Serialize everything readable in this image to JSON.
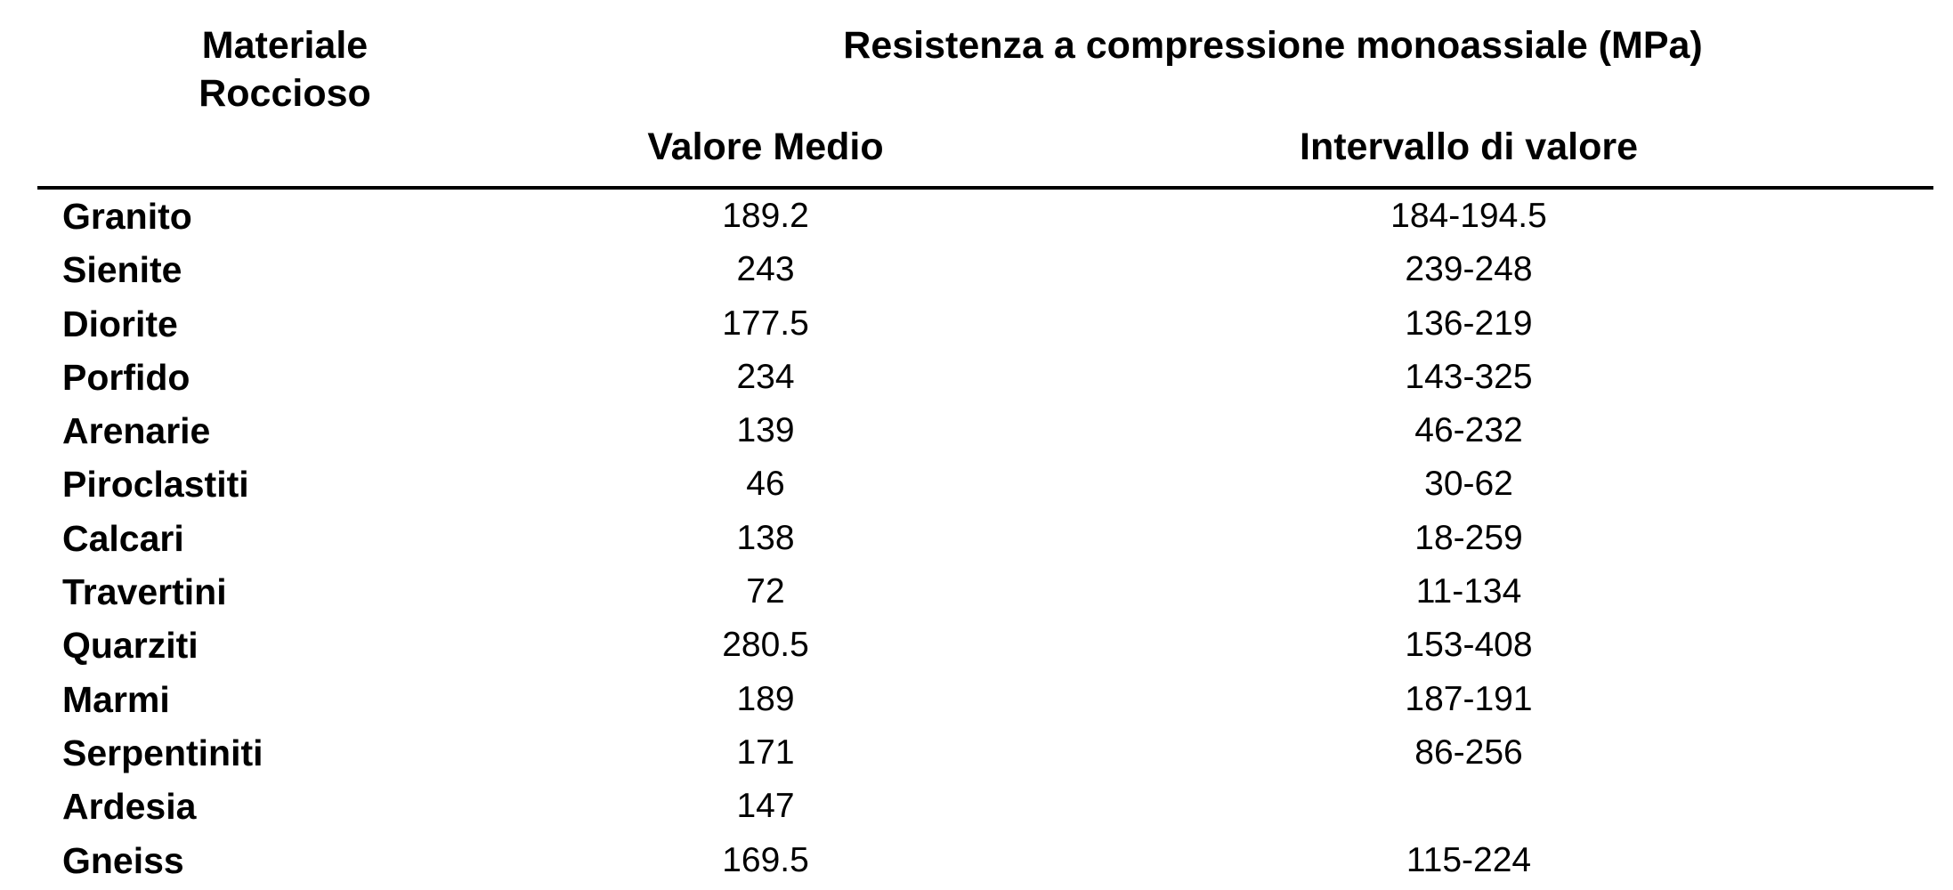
{
  "table": {
    "header": {
      "material": "Materiale Roccioso",
      "group": "Resistenza a compressione monoassiale (MPa)",
      "mean": "Valore Medio",
      "range": "Intervallo di valore"
    },
    "rows": [
      {
        "name": "Granito",
        "mean": "189.2",
        "range": "184-194.5"
      },
      {
        "name": "Sienite",
        "mean": "243",
        "range": "239-248"
      },
      {
        "name": "Diorite",
        "mean": "177.5",
        "range": "136-219"
      },
      {
        "name": "Porfido",
        "mean": "234",
        "range": "143-325"
      },
      {
        "name": "Arenarie",
        "mean": "139",
        "range": "46-232"
      },
      {
        "name": "Piroclastiti",
        "mean": "46",
        "range": "30-62"
      },
      {
        "name": "Calcari",
        "mean": "138",
        "range": "18-259"
      },
      {
        "name": "Travertini",
        "mean": "72",
        "range": "11-134"
      },
      {
        "name": "Quarziti",
        "mean": "280.5",
        "range": "153-408"
      },
      {
        "name": "Marmi",
        "mean": "189",
        "range": "187-191"
      },
      {
        "name": "Serpentiniti",
        "mean": "171",
        "range": "86-256"
      },
      {
        "name": "Ardesia",
        "mean": "147",
        "range": ""
      },
      {
        "name": "Gneiss",
        "mean": "169.5",
        "range": "115-224"
      }
    ]
  }
}
